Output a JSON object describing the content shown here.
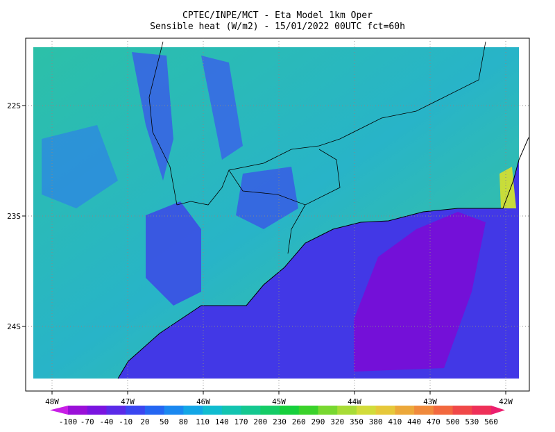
{
  "header": {
    "title": "CPTEC/INPE/MCT -  Eta Model 1km Oper",
    "subtitle": "Sensible heat (W/m2) - 15/01/2022 00UTC fct=60h"
  },
  "lon_labels": [
    "48W",
    "47W",
    "46W",
    "45W",
    "44W",
    "43W",
    "42W"
  ],
  "lat_labels": [
    "22S",
    "23S",
    "24S"
  ],
  "colorbar": {
    "labels": [
      -100,
      -70,
      -40,
      -10,
      20,
      50,
      80,
      110,
      140,
      170,
      200,
      230,
      260,
      290,
      320,
      350,
      380,
      410,
      440,
      470,
      500,
      530,
      560
    ],
    "colors": [
      "#c81ee6",
      "#9a0fd8",
      "#7a14e0",
      "#5a2ae8",
      "#3a46f0",
      "#2466f2",
      "#1a88f0",
      "#12a6e6",
      "#10bcd0",
      "#12c4b0",
      "#14c890",
      "#14cc66",
      "#16d03c",
      "#3ad22a",
      "#78d830",
      "#a8dc36",
      "#d2dc3a",
      "#e6c83a",
      "#eca83a",
      "#f08a3c",
      "#f2683e",
      "#f04848",
      "#ee3058",
      "#ec1e6e"
    ]
  }
}
